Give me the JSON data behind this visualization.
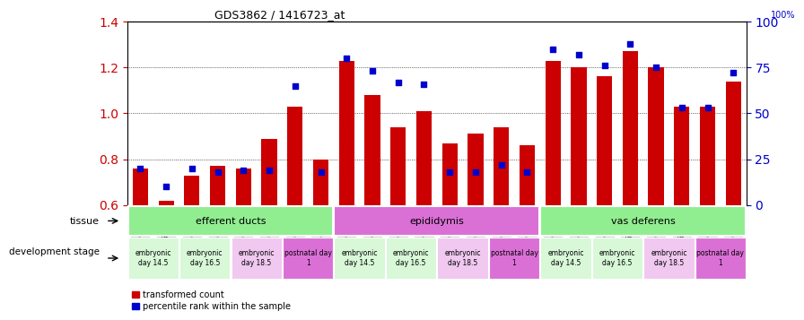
{
  "title": "GDS3862 / 1416723_at",
  "samples": [
    "GSM560923",
    "GSM560924",
    "GSM560925",
    "GSM560926",
    "GSM560927",
    "GSM560928",
    "GSM560929",
    "GSM560930",
    "GSM560931",
    "GSM560932",
    "GSM560933",
    "GSM560934",
    "GSM560935",
    "GSM560936",
    "GSM560937",
    "GSM560938",
    "GSM560939",
    "GSM560940",
    "GSM560941",
    "GSM560942",
    "GSM560943",
    "GSM560944",
    "GSM560945",
    "GSM560946"
  ],
  "transformed_count": [
    0.76,
    0.62,
    0.73,
    0.77,
    0.76,
    0.89,
    1.03,
    0.8,
    1.23,
    1.08,
    0.94,
    1.01,
    0.87,
    0.91,
    0.94,
    0.86,
    1.23,
    1.2,
    1.16,
    1.27,
    1.2,
    1.03,
    1.03,
    1.14
  ],
  "percentile_rank": [
    20,
    10,
    20,
    18,
    19,
    19,
    65,
    18,
    80,
    73,
    67,
    66,
    18,
    18,
    22,
    18,
    85,
    82,
    76,
    88,
    75,
    53,
    53,
    72
  ],
  "ymin": 0.6,
  "ymax": 1.4,
  "y2min": 0,
  "y2max": 100,
  "yticks": [
    0.6,
    0.8,
    1.0,
    1.2,
    1.4
  ],
  "y2ticks": [
    0,
    25,
    50,
    75,
    100
  ],
  "tissue_groups": [
    {
      "label": "efferent ducts",
      "start": 0,
      "end": 7,
      "color": "#90ee90"
    },
    {
      "label": "epididymis",
      "start": 8,
      "end": 15,
      "color": "#da70d6"
    },
    {
      "label": "vas deferens",
      "start": 16,
      "end": 23,
      "color": "#90ee90"
    }
  ],
  "dev_stage_groups": [
    {
      "label": "embryonic\nday 14.5",
      "start": 0,
      "end": 1,
      "color": "#d8f8d8"
    },
    {
      "label": "embryonic\nday 16.5",
      "start": 2,
      "end": 3,
      "color": "#d8f8d8"
    },
    {
      "label": "embryonic\nday 18.5",
      "start": 4,
      "end": 5,
      "color": "#f0c8f0"
    },
    {
      "label": "postnatal day\n1",
      "start": 6,
      "end": 7,
      "color": "#da70d6"
    },
    {
      "label": "embryonic\nday 14.5",
      "start": 8,
      "end": 9,
      "color": "#d8f8d8"
    },
    {
      "label": "embryonic\nday 16.5",
      "start": 10,
      "end": 11,
      "color": "#d8f8d8"
    },
    {
      "label": "embryonic\nday 18.5",
      "start": 12,
      "end": 13,
      "color": "#f0c8f0"
    },
    {
      "label": "postnatal day\n1",
      "start": 14,
      "end": 15,
      "color": "#da70d6"
    },
    {
      "label": "embryonic\nday 14.5",
      "start": 16,
      "end": 17,
      "color": "#d8f8d8"
    },
    {
      "label": "embryonic\nday 16.5",
      "start": 18,
      "end": 19,
      "color": "#d8f8d8"
    },
    {
      "label": "embryonic\nday 18.5",
      "start": 20,
      "end": 21,
      "color": "#f0c8f0"
    },
    {
      "label": "postnatal day\n1",
      "start": 22,
      "end": 23,
      "color": "#da70d6"
    }
  ],
  "bar_color": "#cc0000",
  "dot_color": "#0000cc",
  "bar_bottom": 0.6,
  "grid_color": "#000000",
  "tick_bg": "#cccccc",
  "legend_bar": "transformed count",
  "legend_dot": "percentile rank within the sample",
  "tissue_label": "tissue",
  "dev_label": "development stage"
}
